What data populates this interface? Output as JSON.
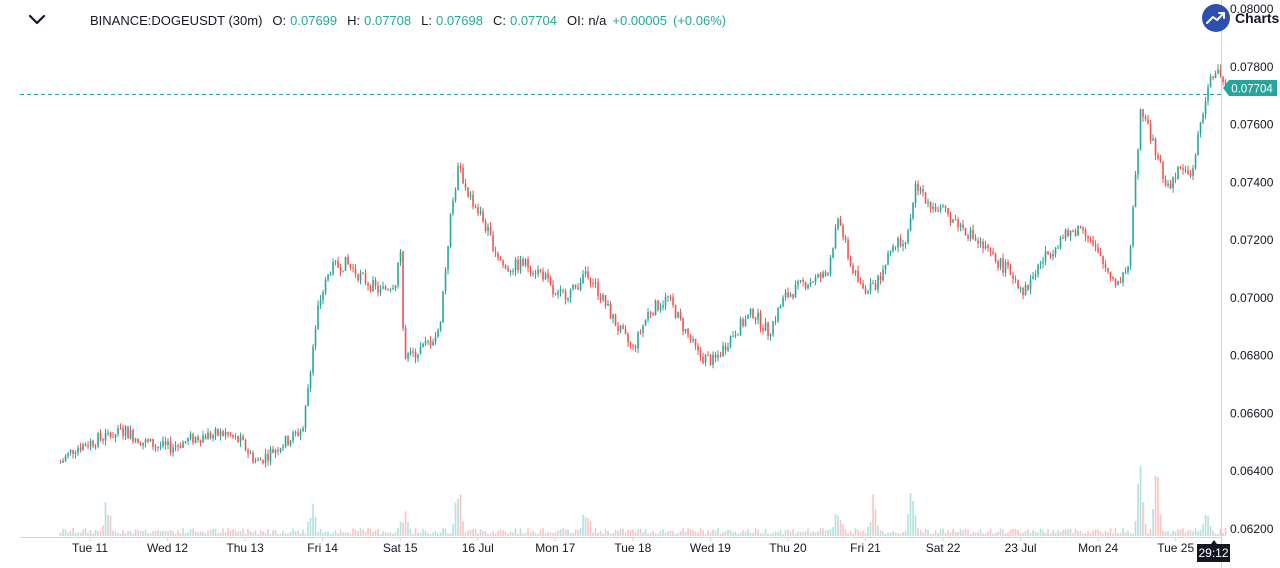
{
  "header": {
    "symbol": "BINANCE:DOGEUSDT (30m)",
    "open_label": "O:",
    "open_value": "0.07699",
    "high_label": "H:",
    "high_value": "0.07708",
    "low_label": "L:",
    "low_value": "0.07698",
    "close_label": "C:",
    "close_value": "0.07704",
    "oi_label": "OI:",
    "oi_value": "n/a",
    "change": "+0.00005",
    "change_pct": "(+0.06%)"
  },
  "logo": {
    "text": "Charts",
    "icon": "chart-trend-icon"
  },
  "colors": {
    "up": "#26a69a",
    "down": "#ef5350",
    "axis": "#d1d4dc",
    "text": "#131722",
    "last_price": "#26a69a"
  },
  "chart_data": {
    "type": "candlestick",
    "symbol": "BINANCE:DOGEUSDT",
    "interval": "30m",
    "ylim": [
      0.0619,
      0.08
    ],
    "y_ticks": [
      "0.08000",
      "0.07800",
      "0.07600",
      "0.07400",
      "0.07200",
      "0.07000",
      "0.06800",
      "0.06600",
      "0.06400",
      "0.06200"
    ],
    "y_tick_values": [
      0.08,
      0.078,
      0.076,
      0.074,
      0.072,
      0.07,
      0.068,
      0.066,
      0.064,
      0.062
    ],
    "x_ticks": [
      "Tue 11",
      "Wed 12",
      "Thu 13",
      "Fri 14",
      "Sat 15",
      "16 Jul",
      "Mon 17",
      "Tue 18",
      "Wed 19",
      "Thu 20",
      "Fri 21",
      "Sat 22",
      "23 Jul",
      "Mon 24",
      "Tue 25"
    ],
    "x_tick_days": [
      1,
      2,
      3,
      4,
      5,
      6,
      7,
      8,
      9,
      10,
      11,
      12,
      13,
      14,
      15
    ],
    "x_range_days": [
      0.6,
      15.66
    ],
    "last_price": "0.07704",
    "last_price_value": 0.07704,
    "countdown": "29:12",
    "grid": false,
    "price_keyframes": [
      [
        0.62,
        0.0643
      ],
      [
        0.8,
        0.0648
      ],
      [
        1.0,
        0.065
      ],
      [
        1.2,
        0.0652
      ],
      [
        1.45,
        0.0654
      ],
      [
        1.7,
        0.065
      ],
      [
        2.0,
        0.0648
      ],
      [
        2.4,
        0.0652
      ],
      [
        2.75,
        0.0653
      ],
      [
        2.95,
        0.065
      ],
      [
        3.15,
        0.0643
      ],
      [
        3.4,
        0.0648
      ],
      [
        3.62,
        0.0652
      ],
      [
        3.75,
        0.0655
      ],
      [
        3.86,
        0.068
      ],
      [
        3.95,
        0.0698
      ],
      [
        4.1,
        0.071
      ],
      [
        4.3,
        0.0712
      ],
      [
        4.55,
        0.0706
      ],
      [
        4.75,
        0.0702
      ],
      [
        4.95,
        0.0706
      ],
      [
        5.0,
        0.072
      ],
      [
        5.05,
        0.0678
      ],
      [
        5.3,
        0.0683
      ],
      [
        5.5,
        0.0688
      ],
      [
        5.65,
        0.0728
      ],
      [
        5.75,
        0.0745
      ],
      [
        5.9,
        0.0735
      ],
      [
        6.05,
        0.0728
      ],
      [
        6.2,
        0.0718
      ],
      [
        6.35,
        0.071
      ],
      [
        6.6,
        0.0712
      ],
      [
        6.85,
        0.0708
      ],
      [
        7.0,
        0.07
      ],
      [
        7.25,
        0.0703
      ],
      [
        7.4,
        0.071
      ],
      [
        7.6,
        0.07
      ],
      [
        7.8,
        0.069
      ],
      [
        8.0,
        0.0682
      ],
      [
        8.2,
        0.0695
      ],
      [
        8.45,
        0.07
      ],
      [
        8.65,
        0.069
      ],
      [
        8.85,
        0.068
      ],
      [
        9.05,
        0.0678
      ],
      [
        9.3,
        0.0688
      ],
      [
        9.55,
        0.0695
      ],
      [
        9.75,
        0.0688
      ],
      [
        9.95,
        0.07
      ],
      [
        10.2,
        0.0705
      ],
      [
        10.5,
        0.0708
      ],
      [
        10.65,
        0.0728
      ],
      [
        10.8,
        0.0712
      ],
      [
        10.95,
        0.0703
      ],
      [
        11.15,
        0.0705
      ],
      [
        11.35,
        0.0718
      ],
      [
        11.55,
        0.0722
      ],
      [
        11.65,
        0.074
      ],
      [
        11.85,
        0.0732
      ],
      [
        12.1,
        0.0728
      ],
      [
        12.35,
        0.0722
      ],
      [
        12.6,
        0.0715
      ],
      [
        12.9,
        0.0708
      ],
      [
        13.05,
        0.0702
      ],
      [
        13.25,
        0.0712
      ],
      [
        13.5,
        0.072
      ],
      [
        13.8,
        0.0725
      ],
      [
        14.05,
        0.0712
      ],
      [
        14.25,
        0.0705
      ],
      [
        14.4,
        0.0712
      ],
      [
        14.55,
        0.0765
      ],
      [
        14.7,
        0.0755
      ],
      [
        14.9,
        0.0738
      ],
      [
        15.05,
        0.0745
      ],
      [
        15.2,
        0.0742
      ],
      [
        15.35,
        0.0765
      ],
      [
        15.5,
        0.078
      ],
      [
        15.66,
        0.07704
      ]
    ],
    "volume_spikes": [
      [
        1.22,
        0.4
      ],
      [
        3.86,
        0.45
      ],
      [
        5.05,
        0.3
      ],
      [
        5.75,
        0.6
      ],
      [
        7.4,
        0.35
      ],
      [
        10.65,
        0.35
      ],
      [
        11.1,
        0.45
      ],
      [
        11.6,
        0.5
      ],
      [
        14.55,
        0.95
      ],
      [
        14.75,
        0.8
      ],
      [
        15.4,
        0.25
      ]
    ]
  }
}
